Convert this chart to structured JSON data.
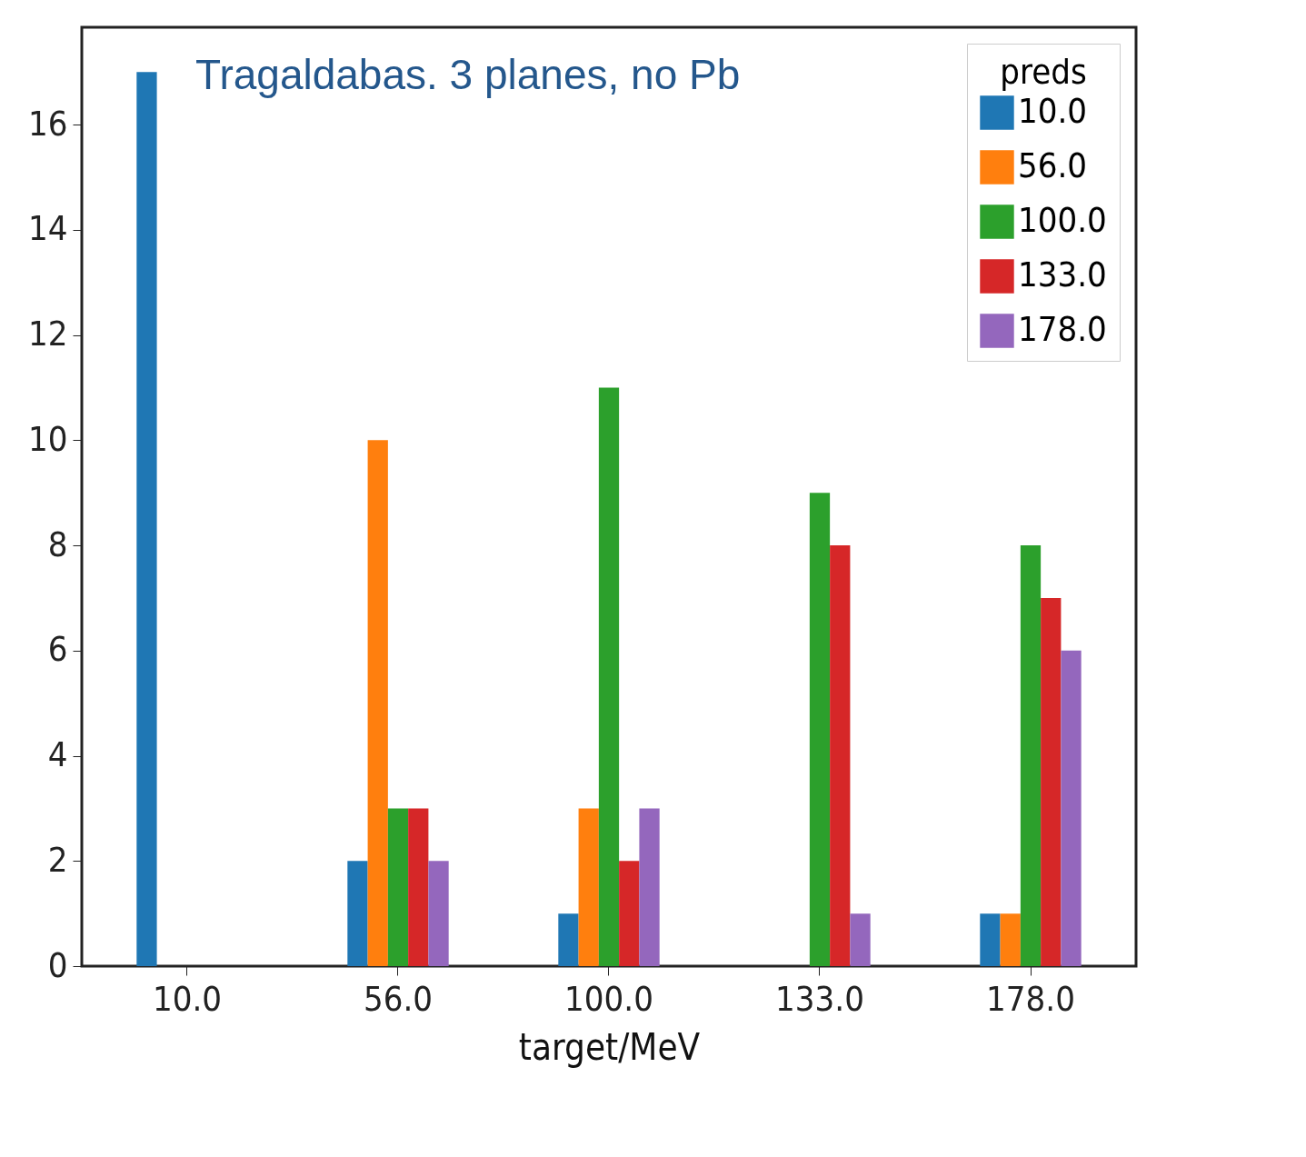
{
  "chart_data": {
    "type": "bar",
    "annotations": [
      "Tragaldabas. 3 planes, no Pb"
    ],
    "xlabel": "target/MeV",
    "legend_title": "preds",
    "legend": "top right",
    "grid": false,
    "categories": [
      "10.0",
      "56.0",
      "100.0",
      "133.0",
      "178.0"
    ],
    "ylim": [
      0,
      17.85
    ],
    "yticks": [
      0,
      2,
      4,
      6,
      8,
      10,
      12,
      14,
      16
    ],
    "series": [
      {
        "name": "10.0",
        "color": "#1f77b4",
        "values": [
          17,
          2,
          1,
          0,
          1
        ]
      },
      {
        "name": "56.0",
        "color": "#ff7f0e",
        "values": [
          0,
          10,
          3,
          0,
          1
        ]
      },
      {
        "name": "100.0",
        "color": "#2ca02c",
        "values": [
          0,
          3,
          11,
          9,
          8
        ]
      },
      {
        "name": "133.0",
        "color": "#d62728",
        "values": [
          0,
          3,
          2,
          8,
          7
        ]
      },
      {
        "name": "178.0",
        "color": "#9467bd",
        "values": [
          0,
          2,
          3,
          1,
          6
        ]
      }
    ]
  }
}
